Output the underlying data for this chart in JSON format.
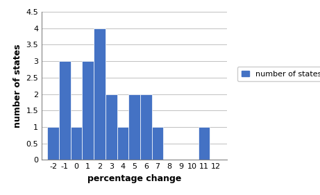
{
  "categories": [
    -2,
    -1,
    0,
    1,
    2,
    3,
    4,
    5,
    6,
    7,
    8,
    9,
    10,
    11,
    12
  ],
  "values": [
    1,
    3,
    1,
    3,
    4,
    2,
    1,
    2,
    2,
    1,
    0,
    0,
    0,
    1,
    0
  ],
  "bar_color": "#4472C4",
  "xlabel": "percentage change",
  "ylabel": "number of states",
  "ylim": [
    0,
    4.5
  ],
  "yticks": [
    0,
    0.5,
    1,
    1.5,
    2,
    2.5,
    3,
    3.5,
    4,
    4.5
  ],
  "legend_label": "number of states",
  "tick_fontsize": 8,
  "label_fontsize": 9,
  "grid_color": "#C0C0C0",
  "figure_width": 4.61,
  "figure_height": 2.81
}
